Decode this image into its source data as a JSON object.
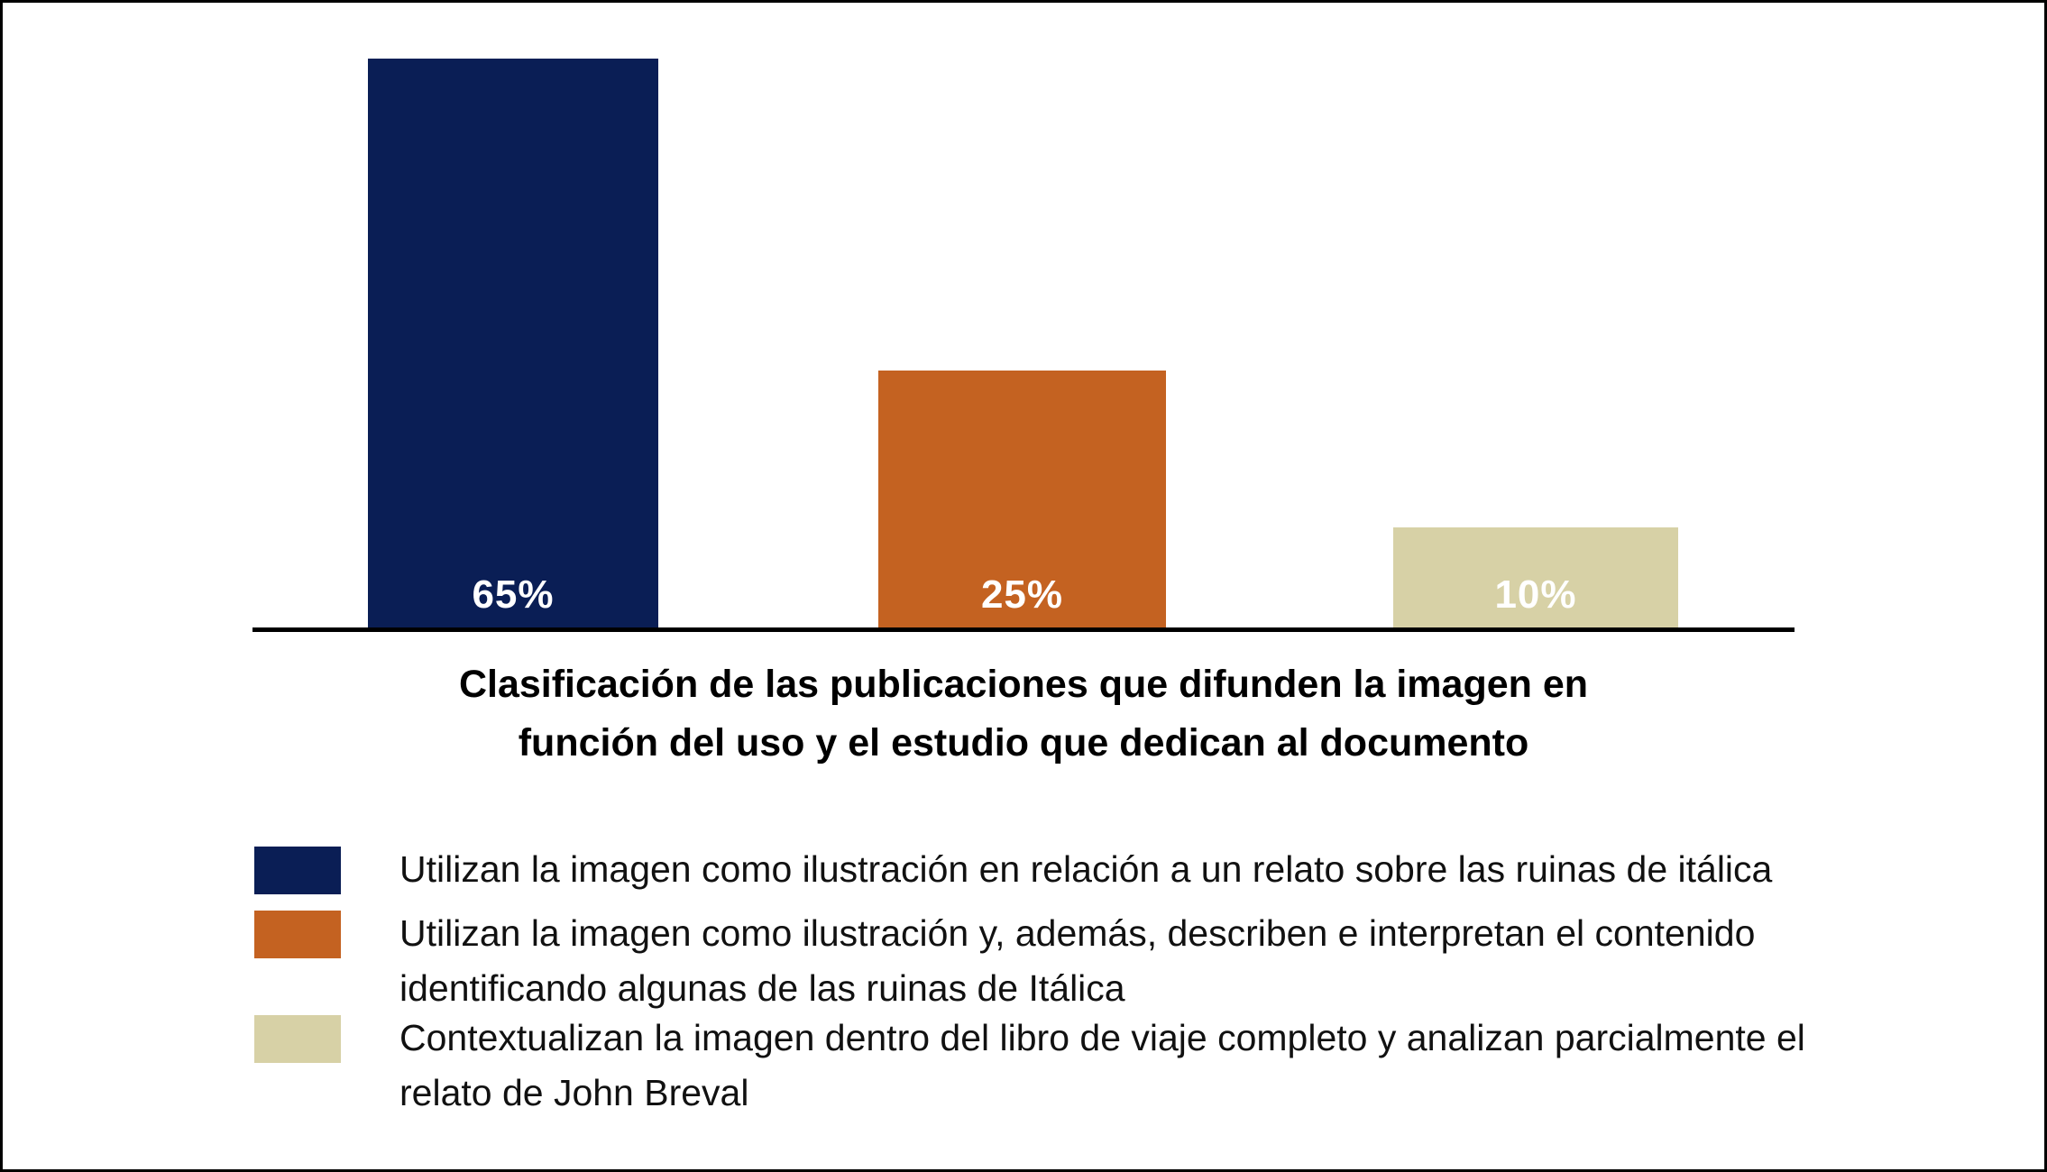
{
  "chart_data": {
    "type": "bar",
    "title": "Clasificación de las publicaciones que difunden la imagen en función del uso y el estudio que dedican al documento",
    "categories": [
      "Utilizan la imagen como ilustración en relación a un relato sobre las ruinas de itálica",
      "Utilizan la imagen como ilustración y, además, describen e interpretan el contenido identificando algunas de las ruinas de Itálica",
      "Contextualizan la imagen dentro del libro de viaje completo y analizan parcialmente el relato de John Breval"
    ],
    "values": [
      65,
      25,
      10
    ],
    "unit": "%",
    "data_labels": [
      "65%",
      "25%",
      "10%"
    ],
    "colors": [
      "#0a1e55",
      "#c46221",
      "#d7d1a6"
    ],
    "bar_label_color": "#ffffff",
    "axis": {
      "y_axis_visible": false,
      "x_tick_labels_visible": false,
      "baseline_visible": true,
      "gridlines": false
    },
    "legend_position": "bottom",
    "title_position": "below-plot"
  },
  "title": {
    "lines": [
      "Clasificación de las publicaciones que difunden la imagen en",
      "función del uso y el estudio que dedican al documento"
    ]
  },
  "legend": {
    "items": [
      {
        "color": "#0a1e55",
        "lines": [
          "Utilizan la imagen como ilustración en relación a un relato sobre las ruinas de itálica"
        ]
      },
      {
        "color": "#c46221",
        "lines": [
          "Utilizan la imagen como ilustración y, además, describen e interpretan el contenido",
          "identificando algunas de las ruinas de Itálica"
        ]
      },
      {
        "color": "#d7d1a6",
        "lines": [
          "Contextualizan la imagen dentro del libro de viaje completo y analizan parcialmente el",
          "relato de John Breval"
        ]
      }
    ]
  }
}
